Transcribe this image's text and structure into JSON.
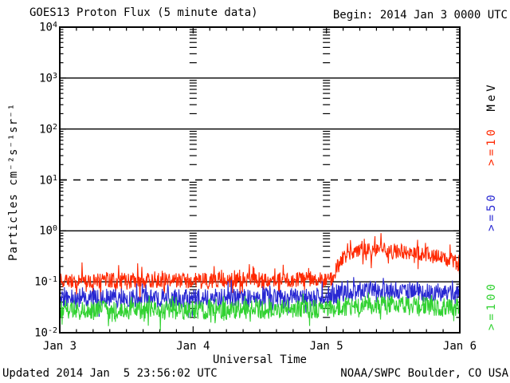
{
  "chart_data": {
    "type": "line",
    "title": "GOES13 Proton Flux (5 minute data)",
    "begin_label": "Begin: 2014 Jan 3 0000 UTC",
    "xlabel": "Universal Time",
    "ylabel": "Particles cm⁻²s⁻¹sr⁻¹",
    "x_tick_labels": [
      "Jan 3",
      "Jan 4",
      "Jan 5",
      "Jan 6"
    ],
    "x_tick_days": [
      0,
      1,
      2,
      3
    ],
    "x_range_days": [
      0,
      3
    ],
    "y_log_range": [
      -2,
      4
    ],
    "y_tick_base": "10",
    "y_tick_exponents": [
      "4",
      "3",
      "2",
      "1",
      "0",
      "-1",
      "-2"
    ],
    "grid": {
      "solid_gridline_exponents": [
        3,
        2,
        0,
        -1
      ],
      "dashed_gridline_exponents": [
        1
      ],
      "day_rule_days": [
        1,
        2
      ],
      "minor_tick_mantissas": [
        2,
        3,
        4,
        5,
        6,
        7,
        8,
        9
      ],
      "x_minor_ticks_per_day": 8
    },
    "legend": {
      "unit": "MeV",
      "unit_color": "#000000"
    },
    "axis_color": "#000000",
    "background_color": "#FFFFFF",
    "points_per_series": 864,
    "series": [
      {
        "name": ">=10",
        "color": "#FF2800",
        "seed": 7,
        "noise_dex": 0.15,
        "spike_dex": 0.22,
        "dip_dex": 0.28,
        "anchor_days": [
          0,
          0.5,
          1,
          1.5,
          1.9,
          2.0,
          2.04,
          2.08,
          2.13,
          2.2,
          2.4,
          2.6,
          2.75,
          2.9,
          2.97,
          3.0
        ],
        "anchor_log10_flux": [
          -0.98,
          -0.97,
          -0.98,
          -0.95,
          -0.96,
          -0.97,
          -0.93,
          -0.72,
          -0.5,
          -0.4,
          -0.36,
          -0.42,
          -0.46,
          -0.55,
          -0.62,
          -0.8
        ]
      },
      {
        "name": ">=50",
        "color": "#2828D2",
        "seed": 101,
        "noise_dex": 0.19,
        "spike_dex": 0.2,
        "dip_dex": 0.22,
        "anchor_days": [
          0,
          0.5,
          1,
          1.5,
          2,
          2.1,
          2.3,
          2.6,
          2.85,
          3
        ],
        "anchor_log10_flux": [
          -1.33,
          -1.32,
          -1.33,
          -1.31,
          -1.3,
          -1.22,
          -1.17,
          -1.19,
          -1.22,
          -1.26
        ]
      },
      {
        "name": ">=100",
        "color": "#32D232",
        "seed": 523,
        "noise_dex": 0.19,
        "spike_dex": 0.2,
        "dip_dex": 0.22,
        "anchor_days": [
          0,
          0.5,
          1,
          1.5,
          2,
          2.1,
          2.3,
          2.6,
          2.85,
          3
        ],
        "anchor_log10_flux": [
          -1.56,
          -1.55,
          -1.56,
          -1.54,
          -1.53,
          -1.5,
          -1.46,
          -1.46,
          -1.49,
          -1.52
        ]
      }
    ]
  },
  "footer": {
    "updated": "Updated 2014 Jan  5 23:56:02 UTC",
    "source": "NOAA/SWPC Boulder, CO USA"
  }
}
